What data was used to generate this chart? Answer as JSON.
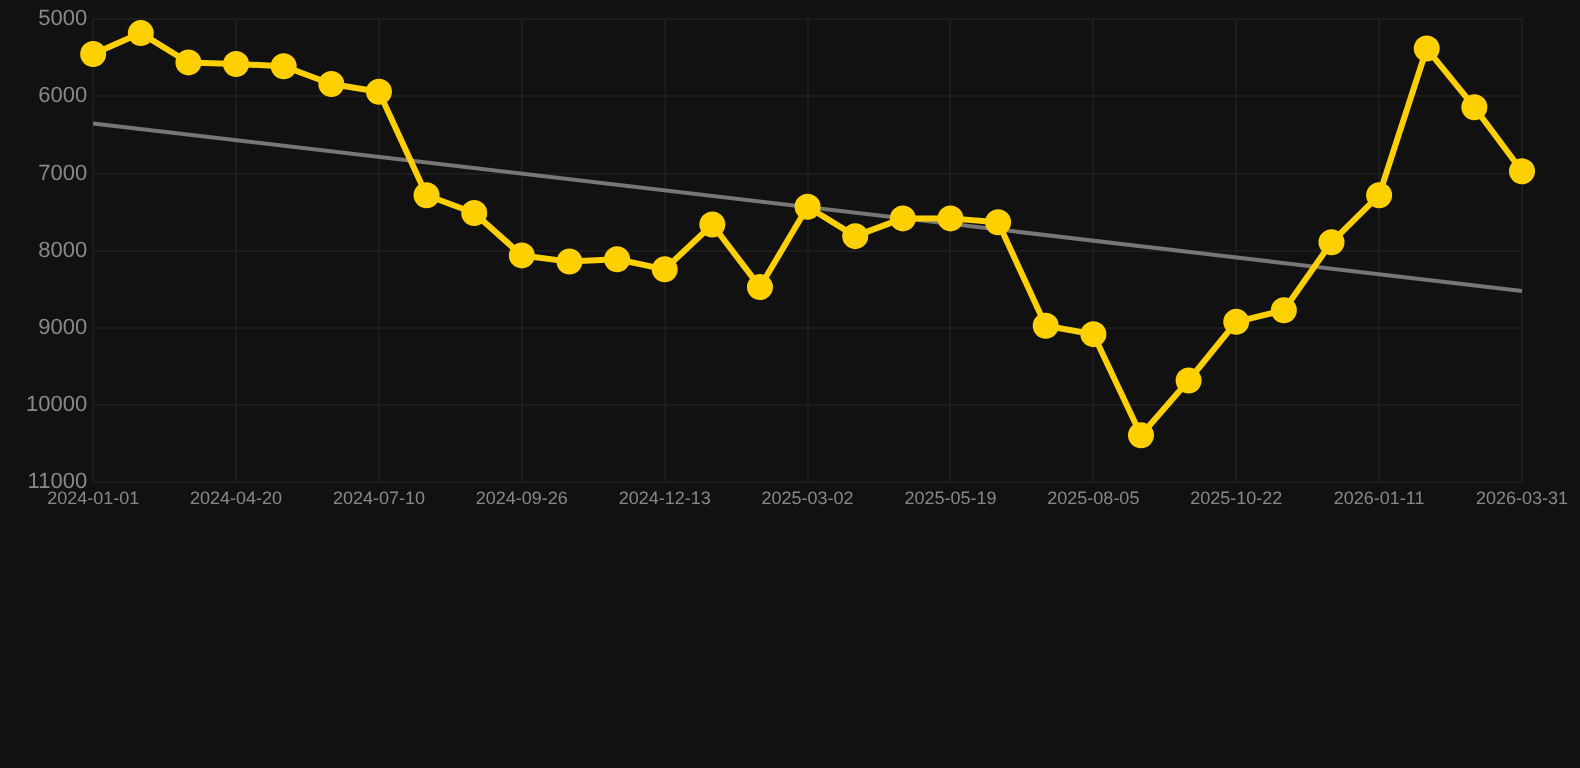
{
  "chart_data": {
    "type": "line",
    "categories": [
      "2024-01-01",
      null,
      null,
      "2024-04-20",
      null,
      null,
      "2024-07-10",
      null,
      null,
      "2024-09-26",
      null,
      null,
      "2024-12-13",
      null,
      null,
      "2025-03-02",
      null,
      null,
      "2025-05-19",
      null,
      null,
      "2025-08-05",
      null,
      null,
      "2025-10-22",
      null,
      null,
      "2026-01-11",
      null,
      null,
      "2026-03-31"
    ],
    "series": [
      {
        "color": "#ffd000",
        "values": [
          5450,
          5180,
          5560,
          5580,
          5610,
          5840,
          5940,
          7280,
          7510,
          8060,
          8140,
          8110,
          8240,
          7660,
          8470,
          7430,
          7810,
          7580,
          7580,
          7630,
          8970,
          9080,
          10390,
          9680,
          8920,
          8770,
          7890,
          7280,
          5380,
          6140,
          6970
        ]
      },
      {
        "type": "line",
        "color": "#777777",
        "marker": "none",
        "values": [
          6350,
          null,
          null,
          null,
          null,
          null,
          null,
          null,
          null,
          null,
          null,
          null,
          null,
          null,
          null,
          null,
          null,
          null,
          null,
          null,
          null,
          null,
          null,
          null,
          null,
          null,
          null,
          null,
          null,
          null,
          8520
        ]
      }
    ],
    "ylim": [
      11000,
      5000
    ],
    "yticks": [
      5000,
      6000,
      7000,
      8000,
      9000,
      10000,
      11000
    ],
    "grid": true,
    "marker": "circle"
  }
}
